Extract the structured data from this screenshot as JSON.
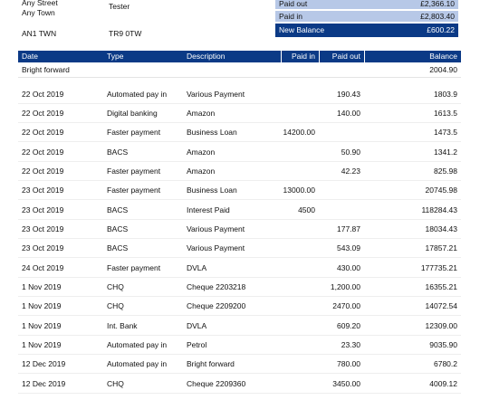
{
  "address": {
    "lines": [
      "Any Street",
      "Any Town",
      "AN1 TWN"
    ],
    "name": "Tester",
    "code": "TR9 0TW"
  },
  "summary": [
    [
      "Paid out",
      "£2,366.10"
    ],
    [
      "Paid in",
      "£2,803.40"
    ],
    [
      "New Balance",
      "£600.22"
    ]
  ],
  "table": {
    "header": [
      "Date",
      "Type",
      "Description",
      "Paid in",
      "Paid out",
      "Balance"
    ],
    "opening": [
      "Bright forward",
      "2004.90"
    ],
    "rows": [
      [
        "22 Oct 2019",
        "Automated pay in",
        "Various Payment",
        null,
        "190.43",
        "1803.9"
      ],
      [
        "22 Oct 2019",
        "Digital banking",
        "Amazon",
        null,
        "140.00",
        "1613.5"
      ],
      [
        "22 Oct 2019",
        "Faster payment",
        "Business Loan",
        "14200.00",
        null,
        "1473.5"
      ],
      [
        "22 Oct 2019",
        "BACS",
        "Amazon",
        null,
        "50.90",
        "1341.2"
      ],
      [
        "22 Oct 2019",
        "Faster payment",
        "Amazon",
        null,
        "42.23",
        "825.98"
      ],
      [
        "23 Oct 2019",
        "Faster payment",
        "Business Loan",
        "13000.00",
        null,
        "20745.98"
      ],
      [
        "23 Oct 2019",
        "BACS",
        "Interest Paid",
        "4500",
        null,
        "118284.43"
      ],
      [
        "23 Oct 2019",
        "BACS",
        "Various Payment",
        null,
        "177.87",
        "18034.43"
      ],
      [
        "23 Oct 2019",
        "BACS",
        "Various Payment",
        null,
        "543.09",
        "17857.21"
      ],
      [
        "24 Oct 2019",
        "Faster payment",
        "DVLA",
        null,
        "430.00",
        "177735.21"
      ],
      [
        "1 Nov 2019",
        "CHQ",
        "Cheque 2203218",
        null,
        "1,200.00",
        "16355.21"
      ],
      [
        "1 Nov 2019",
        "CHQ",
        "Cheque 2209200",
        null,
        "2470.00",
        "14072.54"
      ],
      [
        "1 Nov 2019",
        "Int. Bank",
        "DVLA",
        null,
        "609.20",
        "12309.00"
      ],
      [
        "1 Nov 2019",
        "Automated pay in",
        "Petrol",
        null,
        "23.30",
        "9035.90"
      ],
      [
        "12 Dec 2019",
        "Automated pay in",
        "Bright forward",
        null,
        "780.00",
        "6780.2"
      ],
      [
        "12 Dec 2019",
        "CHQ",
        "Cheque 2209360",
        null,
        "3450.00",
        "4009.12"
      ]
    ]
  }
}
